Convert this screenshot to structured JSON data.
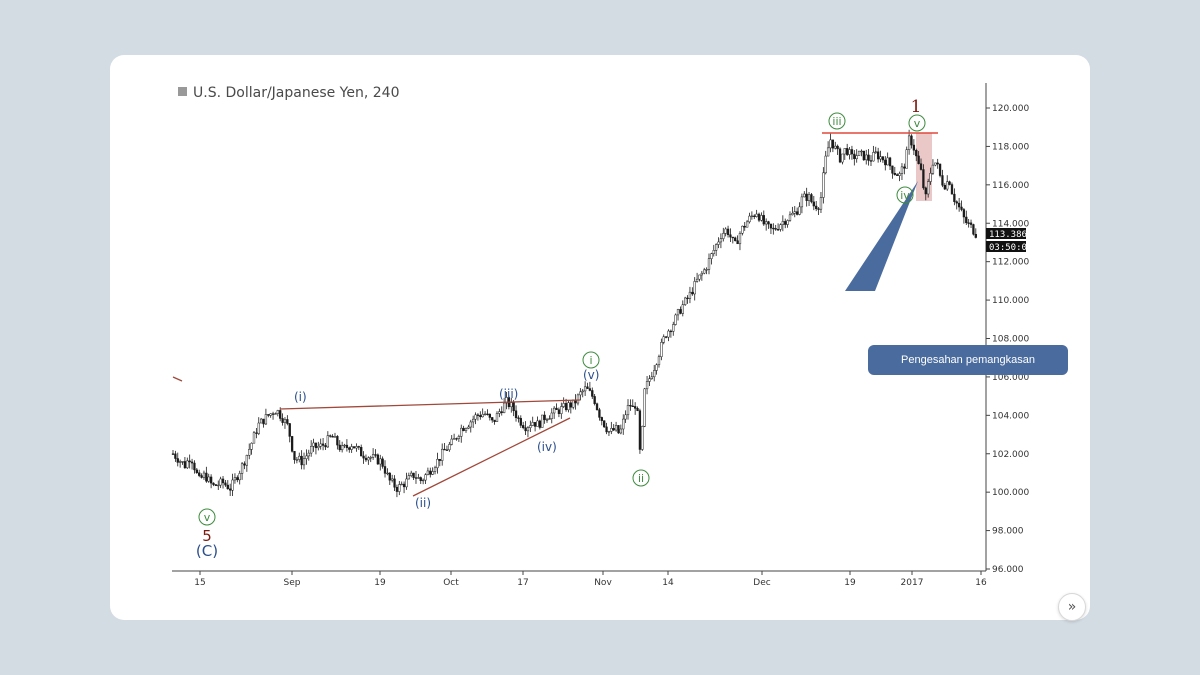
{
  "chart_data": {
    "type": "candlestick",
    "title": "U.S. Dollar/Japanese Yen, 240",
    "x_ticks": [
      "15",
      "Sep",
      "19",
      "Oct",
      "17",
      "Nov",
      "14",
      "Dec",
      "19",
      "2017",
      "16"
    ],
    "y_ticks": [
      "120.000",
      "118.000",
      "116.000",
      "114.000",
      "112.000",
      "110.000",
      "108.000",
      "106.000",
      "104.000",
      "102.000",
      "100.000",
      "98.000",
      "96.000"
    ],
    "ylim": [
      96,
      121
    ],
    "last_price": "113.386",
    "countdown": "03:50:09",
    "price_path": [
      [
        0,
        102.0
      ],
      [
        12,
        101.4
      ],
      [
        18,
        101.9
      ],
      [
        26,
        100.6
      ],
      [
        32,
        100.9
      ],
      [
        40,
        100.3
      ],
      [
        50,
        100.5
      ],
      [
        58,
        100.2
      ],
      [
        62,
        100.6
      ],
      [
        70,
        101.4
      ],
      [
        78,
        102.4
      ],
      [
        86,
        103.5
      ],
      [
        96,
        104.0
      ],
      [
        104,
        104.3
      ],
      [
        110,
        103.9
      ],
      [
        116,
        103.4
      ],
      [
        122,
        101.8
      ],
      [
        130,
        101.6
      ],
      [
        140,
        102.3
      ],
      [
        150,
        102.4
      ],
      [
        160,
        102.9
      ],
      [
        170,
        102.2
      ],
      [
        180,
        102.5
      ],
      [
        190,
        102.0
      ],
      [
        200,
        101.8
      ],
      [
        210,
        101.6
      ],
      [
        218,
        100.6
      ],
      [
        226,
        100.2
      ],
      [
        234,
        100.5
      ],
      [
        242,
        100.9
      ],
      [
        250,
        100.6
      ],
      [
        258,
        101.1
      ],
      [
        266,
        101.6
      ],
      [
        274,
        102.2
      ],
      [
        282,
        102.6
      ],
      [
        290,
        103.3
      ],
      [
        298,
        103.6
      ],
      [
        306,
        104.0
      ],
      [
        314,
        104.1
      ],
      [
        322,
        103.6
      ],
      [
        330,
        104.3
      ],
      [
        336,
        104.7
      ],
      [
        342,
        104.4
      ],
      [
        348,
        103.8
      ],
      [
        356,
        103.4
      ],
      [
        362,
        103.7
      ],
      [
        368,
        103.5
      ],
      [
        374,
        103.9
      ],
      [
        382,
        104.1
      ],
      [
        390,
        104.3
      ],
      [
        398,
        104.5
      ],
      [
        404,
        104.6
      ],
      [
        410,
        105.1
      ],
      [
        416,
        105.4
      ],
      [
        424,
        104.9
      ],
      [
        430,
        104.0
      ],
      [
        436,
        103.4
      ],
      [
        440,
        103.1
      ],
      [
        446,
        103.3
      ],
      [
        450,
        103.0
      ],
      [
        456,
        104.1
      ],
      [
        460,
        104.6
      ],
      [
        464,
        104.3
      ],
      [
        467,
        104.8
      ],
      [
        471,
        101.6
      ],
      [
        475,
        105.2
      ],
      [
        479,
        105.8
      ],
      [
        484,
        106.4
      ],
      [
        490,
        107.3
      ],
      [
        496,
        108.2
      ],
      [
        504,
        108.8
      ],
      [
        512,
        109.6
      ],
      [
        520,
        110.2
      ],
      [
        528,
        111.0
      ],
      [
        536,
        111.6
      ],
      [
        544,
        112.5
      ],
      [
        552,
        113.4
      ],
      [
        558,
        113.7
      ],
      [
        566,
        112.8
      ],
      [
        572,
        113.6
      ],
      [
        580,
        114.2
      ],
      [
        588,
        114.6
      ],
      [
        596,
        113.9
      ],
      [
        604,
        113.6
      ],
      [
        612,
        114.0
      ],
      [
        620,
        114.3
      ],
      [
        628,
        114.6
      ],
      [
        634,
        115.3
      ],
      [
        640,
        115.4
      ],
      [
        646,
        114.9
      ],
      [
        652,
        115.0
      ],
      [
        657,
        117.2
      ],
      [
        662,
        118.4
      ],
      [
        666,
        118.0
      ],
      [
        672,
        117.4
      ],
      [
        678,
        117.9
      ],
      [
        684,
        117.4
      ],
      [
        690,
        117.6
      ],
      [
        696,
        117.5
      ],
      [
        702,
        117.3
      ],
      [
        708,
        117.6
      ],
      [
        714,
        117.4
      ],
      [
        720,
        117.2
      ],
      [
        726,
        116.7
      ],
      [
        732,
        116.5
      ],
      [
        738,
        117.2
      ],
      [
        742,
        118.5
      ],
      [
        746,
        118.0
      ],
      [
        750,
        117.2
      ],
      [
        754,
        116.6
      ],
      [
        758,
        115.2
      ],
      [
        762,
        116.4
      ],
      [
        766,
        117.3
      ],
      [
        770,
        117.0
      ],
      [
        774,
        116.2
      ],
      [
        778,
        116.0
      ],
      [
        782,
        116.3
      ],
      [
        786,
        115.4
      ],
      [
        790,
        115.0
      ],
      [
        794,
        114.6
      ],
      [
        798,
        114.1
      ],
      [
        804,
        113.8
      ],
      [
        810,
        113.4
      ]
    ]
  },
  "annotations": {
    "wave_i_minor": "(i)",
    "wave_ii_minor": "(ii)",
    "wave_iii_minor": "(iii)",
    "wave_iv_minor": "(iv)",
    "wave_v_minor": "(v)",
    "wave_i_minute": "i",
    "wave_ii_minute": "ii",
    "wave_iii_minute": "iii",
    "wave_iv_minute": "iv",
    "wave_v_minute": "v",
    "wave_v_start": "v",
    "wave_5": "5",
    "wave_c": "(C)",
    "wave_1": "1"
  },
  "callout": {
    "text": "Pengesahan pemangkasan"
  },
  "colors": {
    "candle": "#1a1a1a",
    "trendline": "#a0483a",
    "resistance": "#e0493c",
    "highlight": "#d99a9a",
    "wave_blue": "#2b4f8c",
    "wave_green": "#3d8b3d",
    "wave_red": "#7a1a10",
    "callout_bg": "#4a6b9e"
  },
  "nav_icon": "double-chevron-right-icon"
}
